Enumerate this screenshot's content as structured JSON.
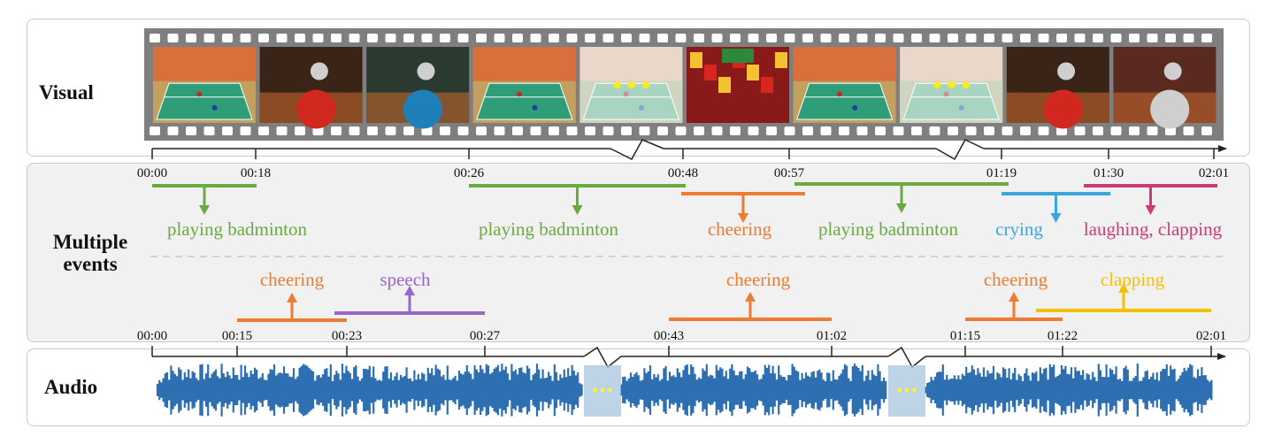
{
  "rows": {
    "visual": "Visual",
    "events": "Multiple events",
    "audio": "Audio"
  },
  "colors": {
    "green": "#6aab3f",
    "orange": "#ec7c30",
    "blue": "#3aa6dc",
    "magenta": "#cc3a7a",
    "purple": "#9966cc",
    "yellow": "#f6c000",
    "waveform": "#2e6fb2",
    "film": "#7f7f7f"
  },
  "visual_timeline": {
    "ticks": [
      "00:00",
      "00:18",
      "00:26",
      "00:48",
      "00:57",
      "01:19",
      "01:30",
      "02:01"
    ]
  },
  "visual_events": [
    {
      "label": "playing badminton",
      "color": "green",
      "start": "00:00",
      "end": "00:18"
    },
    {
      "label": "playing badminton",
      "color": "green",
      "start": "00:26",
      "end": "00:48"
    },
    {
      "label": "cheering",
      "color": "orange",
      "start": "00:48",
      "end": "00:57"
    },
    {
      "label": "playing badminton",
      "color": "green",
      "start": "00:57",
      "end": "01:19"
    },
    {
      "label": "crying",
      "color": "blue",
      "start": "01:19",
      "end": "01:30"
    },
    {
      "label": "laughing, clapping",
      "color": "magenta",
      "start": "01:30",
      "end": "02:01"
    }
  ],
  "audio_events": [
    {
      "label": "cheering",
      "color": "orange",
      "start": "00:15",
      "end": "00:23"
    },
    {
      "label": "speech",
      "color": "purple",
      "start": "00:23",
      "end": "00:27"
    },
    {
      "label": "cheering",
      "color": "orange",
      "start": "00:43",
      "end": "01:02"
    },
    {
      "label": "cheering",
      "color": "orange",
      "start": "01:15",
      "end": "01:22"
    },
    {
      "label": "clapping",
      "color": "yellow",
      "start": "01:22",
      "end": "02:01"
    }
  ],
  "audio_timeline": {
    "ticks": [
      "00:00",
      "00:15",
      "00:23",
      "00:27",
      "00:43",
      "01:02",
      "01:15",
      "01:22",
      "02:01"
    ]
  },
  "frames": [
    {
      "scene": "badminton-court-wide"
    },
    {
      "scene": "player-red-closeup"
    },
    {
      "scene": "player-blue-closeup"
    },
    {
      "scene": "badminton-court-wide"
    },
    {
      "scene": "court-skip-faded"
    },
    {
      "scene": "crowd-flags"
    },
    {
      "scene": "badminton-court-wide"
    },
    {
      "scene": "court-skip-faded"
    },
    {
      "scene": "player-crying"
    },
    {
      "scene": "coach-closeup"
    }
  ]
}
